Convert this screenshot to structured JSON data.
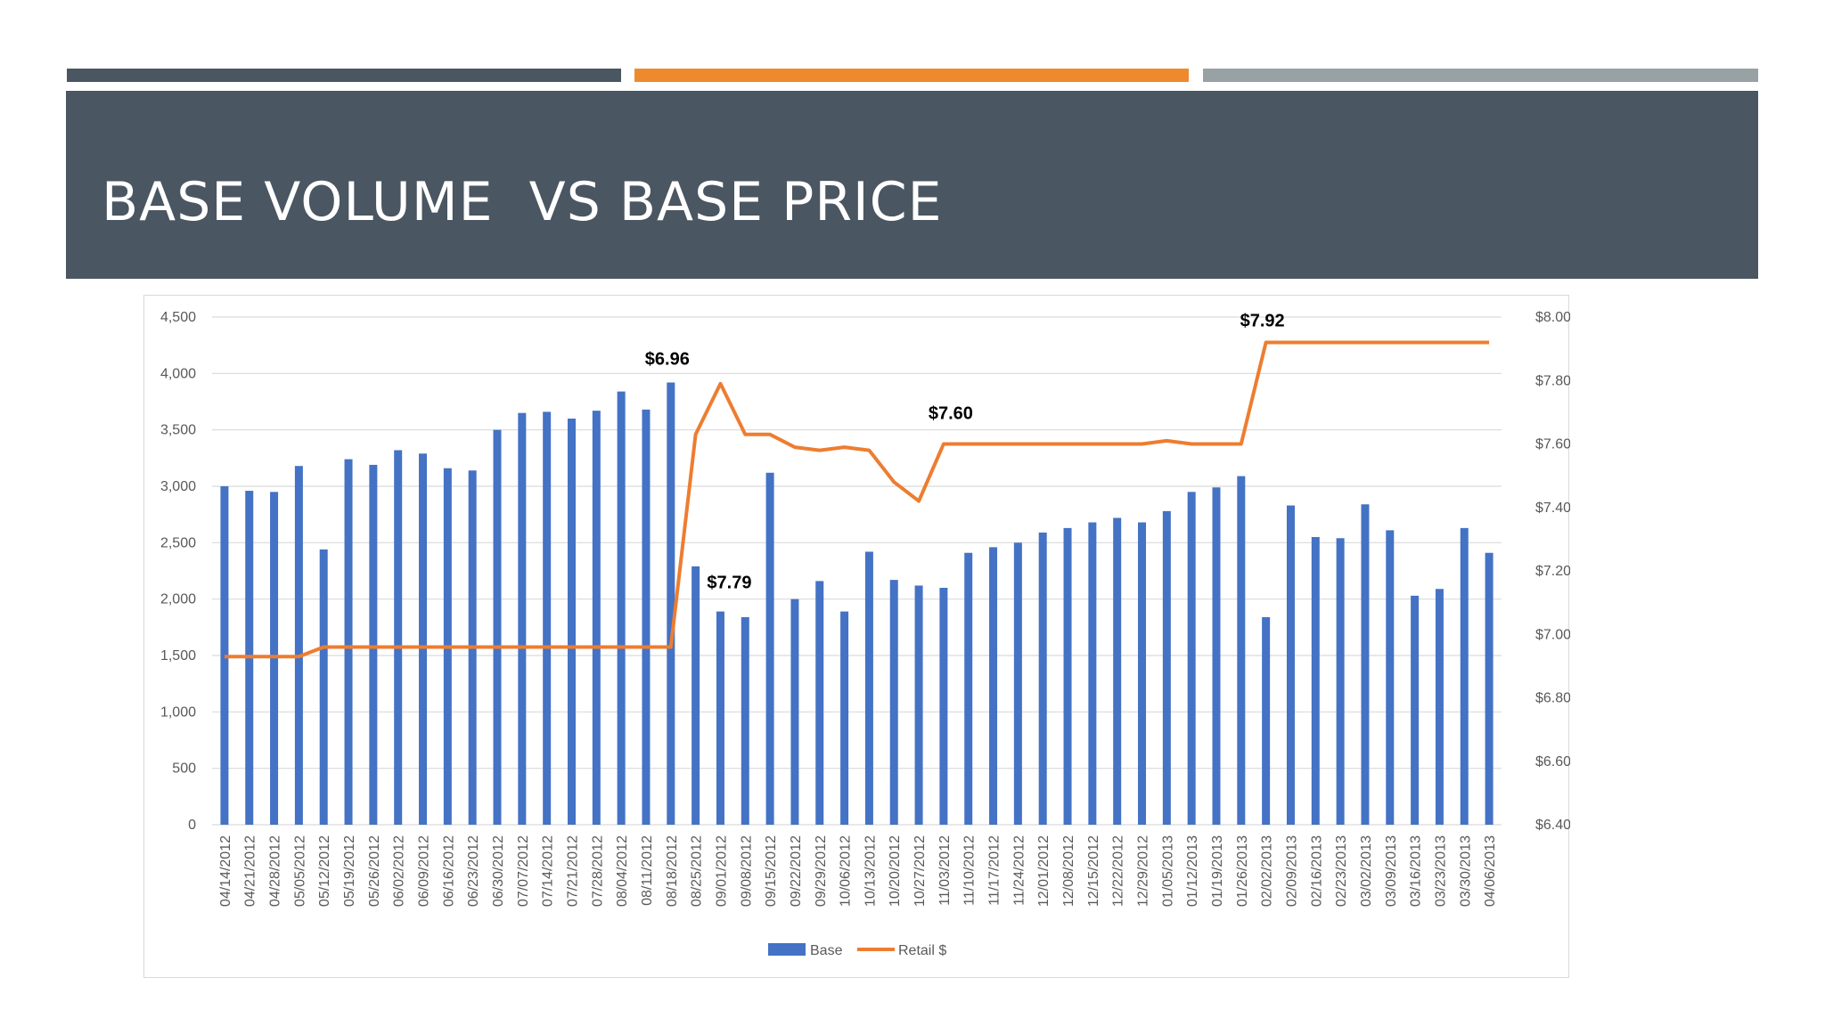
{
  "colors": {
    "accent_1": "#4a5661",
    "accent_2": "#ee8a2e",
    "accent_3": "#98a1a4",
    "title_band": "#4a5661",
    "bar": "#4472c4",
    "line": "#ed7d31",
    "grid": "#d9d9d9"
  },
  "slide": {
    "title": "BASE VOLUME  VS BASE PRICE"
  },
  "chart_data": {
    "type": "bar",
    "title": "",
    "xlabel": "",
    "ylabel": "",
    "grid": true,
    "legend_position": "bottom",
    "categories": [
      "04/14/2012",
      "04/21/2012",
      "04/28/2012",
      "05/05/2012",
      "05/12/2012",
      "05/19/2012",
      "05/26/2012",
      "06/02/2012",
      "06/09/2012",
      "06/16/2012",
      "06/23/2012",
      "06/30/2012",
      "07/07/2012",
      "07/14/2012",
      "07/21/2012",
      "07/28/2012",
      "08/04/2012",
      "08/11/2012",
      "08/18/2012",
      "08/25/2012",
      "09/01/2012",
      "09/08/2012",
      "09/15/2012",
      "09/22/2012",
      "09/29/2012",
      "10/06/2012",
      "10/13/2012",
      "10/20/2012",
      "10/27/2012",
      "11/03/2012",
      "11/10/2012",
      "11/17/2012",
      "11/24/2012",
      "12/01/2012",
      "12/08/2012",
      "12/15/2012",
      "12/22/2012",
      "12/29/2012",
      "01/05/2013",
      "01/12/2013",
      "01/19/2013",
      "01/26/2013",
      "02/02/2013",
      "02/09/2013",
      "02/16/2013",
      "02/23/2013",
      "03/02/2013",
      "03/09/2013",
      "03/16/2013",
      "03/23/2013",
      "03/30/2013",
      "04/06/2013"
    ],
    "y_left": {
      "range": [
        0,
        4500
      ],
      "ticks": [
        "0",
        "500",
        "1,000",
        "1,500",
        "2,000",
        "2,500",
        "3,000",
        "3,500",
        "4,000",
        "4,500"
      ]
    },
    "y_right": {
      "range": [
        6.4,
        8.0
      ],
      "ticks": [
        "$6.40",
        "$6.60",
        "$6.80",
        "$7.00",
        "$7.20",
        "$7.40",
        "$7.60",
        "$7.80",
        "$8.00"
      ]
    },
    "series": [
      {
        "name": "Base",
        "type": "bar",
        "axis": "left",
        "values": [
          3000,
          2960,
          2950,
          3180,
          2440,
          3240,
          3190,
          3320,
          3290,
          3160,
          3140,
          3500,
          3650,
          3660,
          3600,
          3670,
          3840,
          3680,
          3920,
          2290,
          1890,
          1840,
          3120,
          2000,
          2160,
          1890,
          2420,
          2170,
          2120,
          2100,
          2410,
          2460,
          2500,
          2590,
          2630,
          2680,
          2720,
          2680,
          2780,
          2950,
          2990,
          3090,
          1840,
          2830,
          2550,
          2540,
          2840,
          2610,
          2030,
          2090,
          2630,
          2410
        ]
      },
      {
        "name": "Retail $",
        "type": "line",
        "axis": "right",
        "values": [
          6.93,
          6.93,
          6.93,
          6.93,
          6.96,
          6.96,
          6.96,
          6.96,
          6.96,
          6.96,
          6.96,
          6.96,
          6.96,
          6.96,
          6.96,
          6.96,
          6.96,
          6.96,
          6.96,
          7.63,
          7.79,
          7.63,
          7.63,
          7.59,
          7.58,
          7.59,
          7.58,
          7.48,
          7.42,
          7.6,
          7.6,
          7.6,
          7.6,
          7.6,
          7.6,
          7.6,
          7.6,
          7.6,
          7.61,
          7.6,
          7.6,
          7.6,
          7.92,
          7.92,
          7.92,
          7.92,
          7.92,
          7.92,
          7.92,
          7.92,
          7.92,
          7.92
        ]
      }
    ],
    "annotations": [
      {
        "text": "$6.96",
        "index": 18
      },
      {
        "text": "$7.79",
        "index": 20
      },
      {
        "text": "$7.60",
        "index": 29
      },
      {
        "text": "$7.92",
        "index": 42
      }
    ]
  }
}
